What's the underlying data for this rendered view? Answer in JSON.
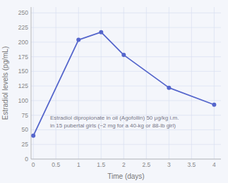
{
  "chart_data": {
    "type": "line",
    "x": [
      0,
      1,
      1.5,
      2,
      3,
      4
    ],
    "values": [
      40,
      204,
      217,
      178,
      122,
      93
    ],
    "color": "#5566cc",
    "marker": "circle",
    "xlabel": "Time (days)",
    "ylabel": "Estradiol levels (pg/mL)",
    "xlim": [
      -0.05,
      4.15
    ],
    "ylim": [
      0,
      260
    ],
    "xticks": [
      0,
      0.5,
      1,
      1.5,
      2,
      2.5,
      3,
      3.5,
      4
    ],
    "yticks": [
      0,
      25,
      50,
      75,
      100,
      125,
      150,
      175,
      200,
      225,
      250
    ],
    "grid": true,
    "annotations": [
      "Estradiol dipropionate in oil (Agofollin) 50 μg/kg i.m.",
      "in 15 pubertal girls (~2 mg for a 40-kg or 88-lb girl)"
    ]
  }
}
